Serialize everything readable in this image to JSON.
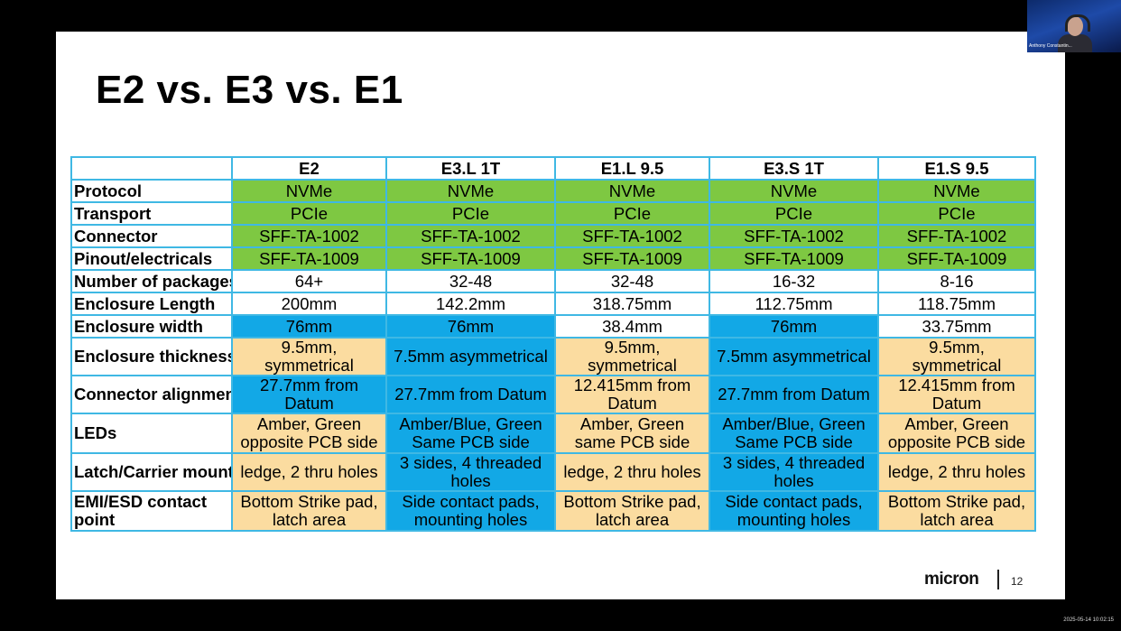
{
  "slide": {
    "title": "E2 vs. E3 vs. E1",
    "logo": "micron",
    "page_number": "12"
  },
  "table": {
    "columns": [
      "",
      "E2",
      "E3.L 1T",
      "E1.L 9.5",
      "E3.S 1T",
      "E1.S 9.5"
    ],
    "rows": [
      {
        "label": "Protocol",
        "cells": [
          "NVMe",
          "NVMe",
          "NVMe",
          "NVMe",
          "NVMe"
        ],
        "colors": [
          "g",
          "g",
          "g",
          "g",
          "g"
        ]
      },
      {
        "label": "Transport",
        "cells": [
          "PCIe",
          "PCIe",
          "PCIe",
          "PCIe",
          "PCIe"
        ],
        "colors": [
          "g",
          "g",
          "g",
          "g",
          "g"
        ]
      },
      {
        "label": "Connector",
        "cells": [
          "SFF-TA-1002",
          "SFF-TA-1002",
          "SFF-TA-1002",
          "SFF-TA-1002",
          "SFF-TA-1002"
        ],
        "colors": [
          "g",
          "g",
          "g",
          "g",
          "g"
        ]
      },
      {
        "label": "Pinout/electricals",
        "cells": [
          "SFF-TA-1009",
          "SFF-TA-1009",
          "SFF-TA-1009",
          "SFF-TA-1009",
          "SFF-TA-1009"
        ],
        "colors": [
          "g",
          "g",
          "g",
          "g",
          "g"
        ]
      },
      {
        "label": "Number of packages",
        "cells": [
          "64+",
          "32-48",
          "32-48",
          "16-32",
          "8-16"
        ],
        "colors": [
          "w",
          "w",
          "w",
          "w",
          "w"
        ]
      },
      {
        "label": "Enclosure Length",
        "cells": [
          "200mm",
          "142.2mm",
          "318.75mm",
          "112.75mm",
          "118.75mm"
        ],
        "colors": [
          "w",
          "w",
          "w",
          "w",
          "w"
        ]
      },
      {
        "label": "Enclosure width",
        "cells": [
          "76mm",
          "76mm",
          "38.4mm",
          "76mm",
          "33.75mm"
        ],
        "colors": [
          "b",
          "b",
          "w",
          "b",
          "w"
        ]
      },
      {
        "label": "Enclosure thickness",
        "cells": [
          "9.5mm, symmetrical",
          "7.5mm asymmetrical",
          "9.5mm, symmetrical",
          "7.5mm asymmetrical",
          "9.5mm, symmetrical"
        ],
        "colors": [
          "y",
          "b",
          "y",
          "b",
          "y"
        ]
      },
      {
        "label": "Connector alignment",
        "cells": [
          "27.7mm from Datum",
          "27.7mm from Datum",
          "12.415mm from Datum",
          "27.7mm from Datum",
          "12.415mm from Datum"
        ],
        "colors": [
          "b",
          "b",
          "y",
          "b",
          "y"
        ]
      },
      {
        "label": "LEDs",
        "cells": [
          "Amber, Green opposite PCB side",
          "Amber/Blue, Green Same PCB side",
          "Amber, Green same PCB side",
          "Amber/Blue, Green Same PCB side",
          "Amber, Green opposite PCB side"
        ],
        "colors": [
          "y",
          "b",
          "y",
          "b",
          "y"
        ]
      },
      {
        "label": "Latch/Carrier mount",
        "cells": [
          "ledge, 2 thru holes",
          "3 sides, 4 threaded holes",
          "ledge, 2 thru holes",
          "3 sides, 4 threaded holes",
          "ledge, 2 thru holes"
        ],
        "colors": [
          "y",
          "b",
          "y",
          "b",
          "y"
        ]
      },
      {
        "label": "EMI/ESD contact point",
        "cells": [
          "Bottom Strike pad, latch area",
          "Side contact pads, mounting holes",
          "Bottom Strike pad, latch area",
          "Side contact pads, mounting holes",
          "Bottom Strike pad, latch area"
        ],
        "colors": [
          "y",
          "b",
          "y",
          "b",
          "y"
        ]
      }
    ]
  },
  "webcam": {
    "name": "Anthony Constantin..."
  },
  "timestamp": "2025-05-14 10:02:15"
}
